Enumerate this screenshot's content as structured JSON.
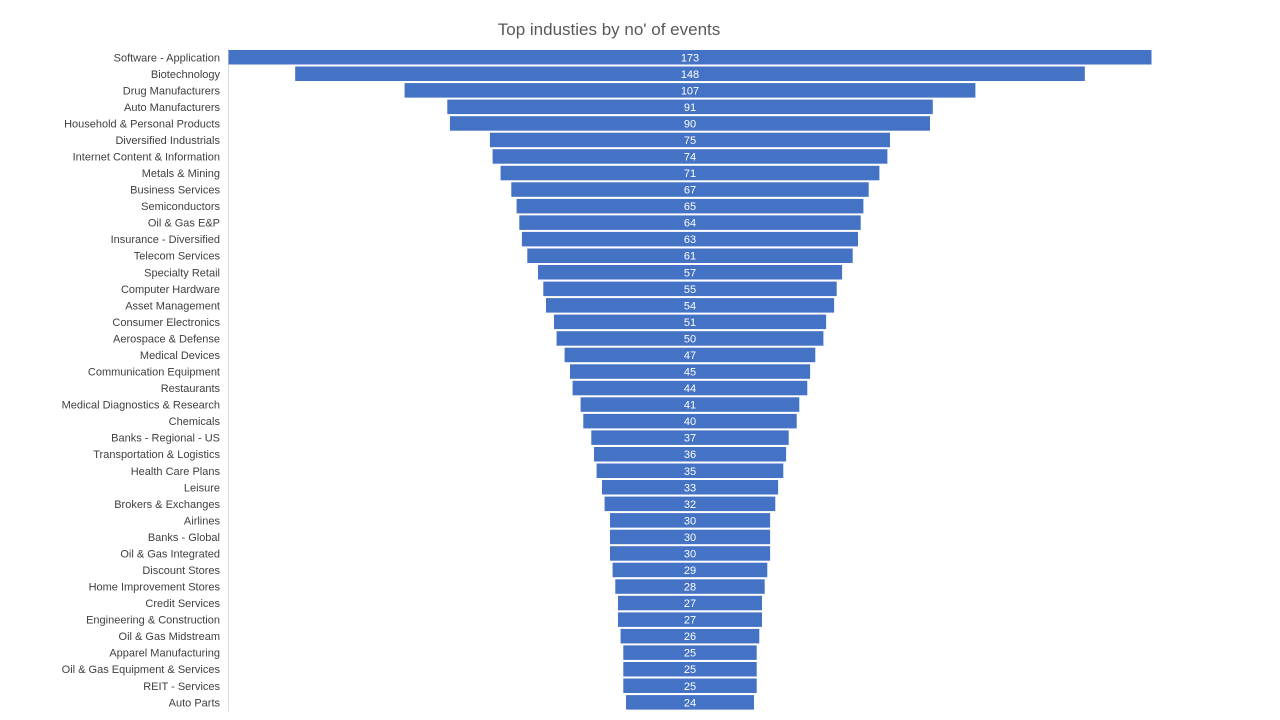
{
  "chart_data": {
    "type": "bar",
    "orientation": "horizontal",
    "style": "funnel",
    "title": "Top industies by no' of events",
    "xlabel": "",
    "ylabel": "",
    "bar_color": "#4472C4",
    "grid": false,
    "legend": "none",
    "categories": [
      "Software - Application",
      "Biotechnology",
      "Drug Manufacturers",
      "Auto Manufacturers",
      "Household & Personal Products",
      "Diversified Industrials",
      "Internet Content & Information",
      "Metals & Mining",
      "Business Services",
      "Semiconductors",
      "Oil & Gas E&P",
      "Insurance - Diversified",
      "Telecom Services",
      "Specialty Retail",
      "Computer Hardware",
      "Asset Management",
      "Consumer Electronics",
      "Aerospace & Defense",
      "Medical Devices",
      "Communication Equipment",
      "Restaurants",
      "Medical Diagnostics & Research",
      "Chemicals",
      "Banks - Regional - US",
      "Transportation & Logistics",
      "Health Care Plans",
      "Leisure",
      "Brokers & Exchanges",
      "Airlines",
      "Banks - Global",
      "Oil & Gas Integrated",
      "Discount Stores",
      "Home Improvement Stores",
      "Credit Services",
      "Engineering & Construction",
      "Oil & Gas Midstream",
      "Apparel Manufacturing",
      "Oil & Gas Equipment & Services",
      "REIT - Services",
      "Auto Parts"
    ],
    "values": [
      173,
      148,
      107,
      91,
      90,
      75,
      74,
      71,
      67,
      65,
      64,
      63,
      61,
      57,
      55,
      54,
      51,
      50,
      47,
      45,
      44,
      41,
      40,
      37,
      36,
      35,
      33,
      32,
      30,
      30,
      30,
      29,
      28,
      27,
      27,
      26,
      25,
      25,
      25,
      24
    ]
  }
}
